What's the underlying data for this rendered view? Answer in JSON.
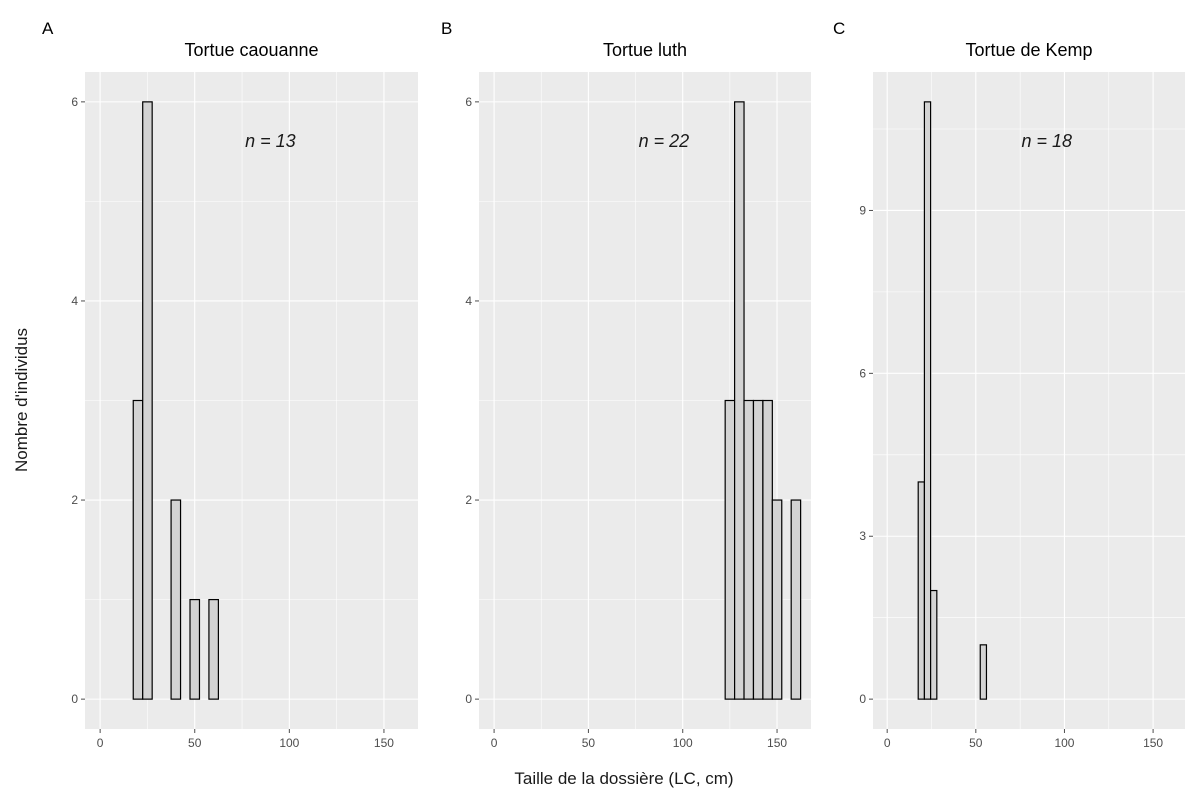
{
  "chart_data": [
    {
      "type": "bar",
      "tag": "A",
      "title": "Tortue caouanne",
      "annotation": "n = 13",
      "xlim": [
        -8,
        168
      ],
      "ylim": [
        -0.3,
        6.3
      ],
      "xticks": [
        0,
        50,
        100,
        150
      ],
      "yticks": [
        0,
        2,
        4,
        6
      ],
      "bin_width": 5,
      "bins": [
        [
          17.5,
          22.5,
          3
        ],
        [
          22.5,
          27.5,
          6
        ],
        [
          37.5,
          42.5,
          2
        ],
        [
          47.5,
          52.5,
          1
        ],
        [
          57.5,
          62.5,
          1
        ]
      ]
    },
    {
      "type": "bar",
      "tag": "B",
      "title": "Tortue luth",
      "annotation": "n = 22",
      "xlim": [
        -8,
        168
      ],
      "ylim": [
        -0.3,
        6.3
      ],
      "xticks": [
        0,
        50,
        100,
        150
      ],
      "yticks": [
        0,
        2,
        4,
        6
      ],
      "bin_width": 5,
      "bins": [
        [
          122.5,
          127.5,
          3
        ],
        [
          127.5,
          132.5,
          6
        ],
        [
          132.5,
          137.5,
          3
        ],
        [
          137.5,
          142.5,
          3
        ],
        [
          142.5,
          147.5,
          3
        ],
        [
          147.5,
          152.5,
          2
        ],
        [
          157.5,
          162.5,
          2
        ]
      ]
    },
    {
      "type": "bar",
      "tag": "C",
      "title": "Tortue de Kemp",
      "annotation": "n = 18",
      "xlim": [
        -8,
        168
      ],
      "ylim": [
        -0.55,
        11.55
      ],
      "xticks": [
        0,
        50,
        100,
        150
      ],
      "yticks": [
        0,
        3,
        6,
        9
      ],
      "bin_width": 3.5,
      "bins": [
        [
          17.5,
          21.0,
          4
        ],
        [
          21.0,
          24.5,
          11
        ],
        [
          24.5,
          28.0,
          2
        ],
        [
          52.5,
          56.0,
          1
        ]
      ]
    }
  ],
  "xlabel": "Taille de la dossière (LC, cm)",
  "ylabel": "Nombre d'individus"
}
